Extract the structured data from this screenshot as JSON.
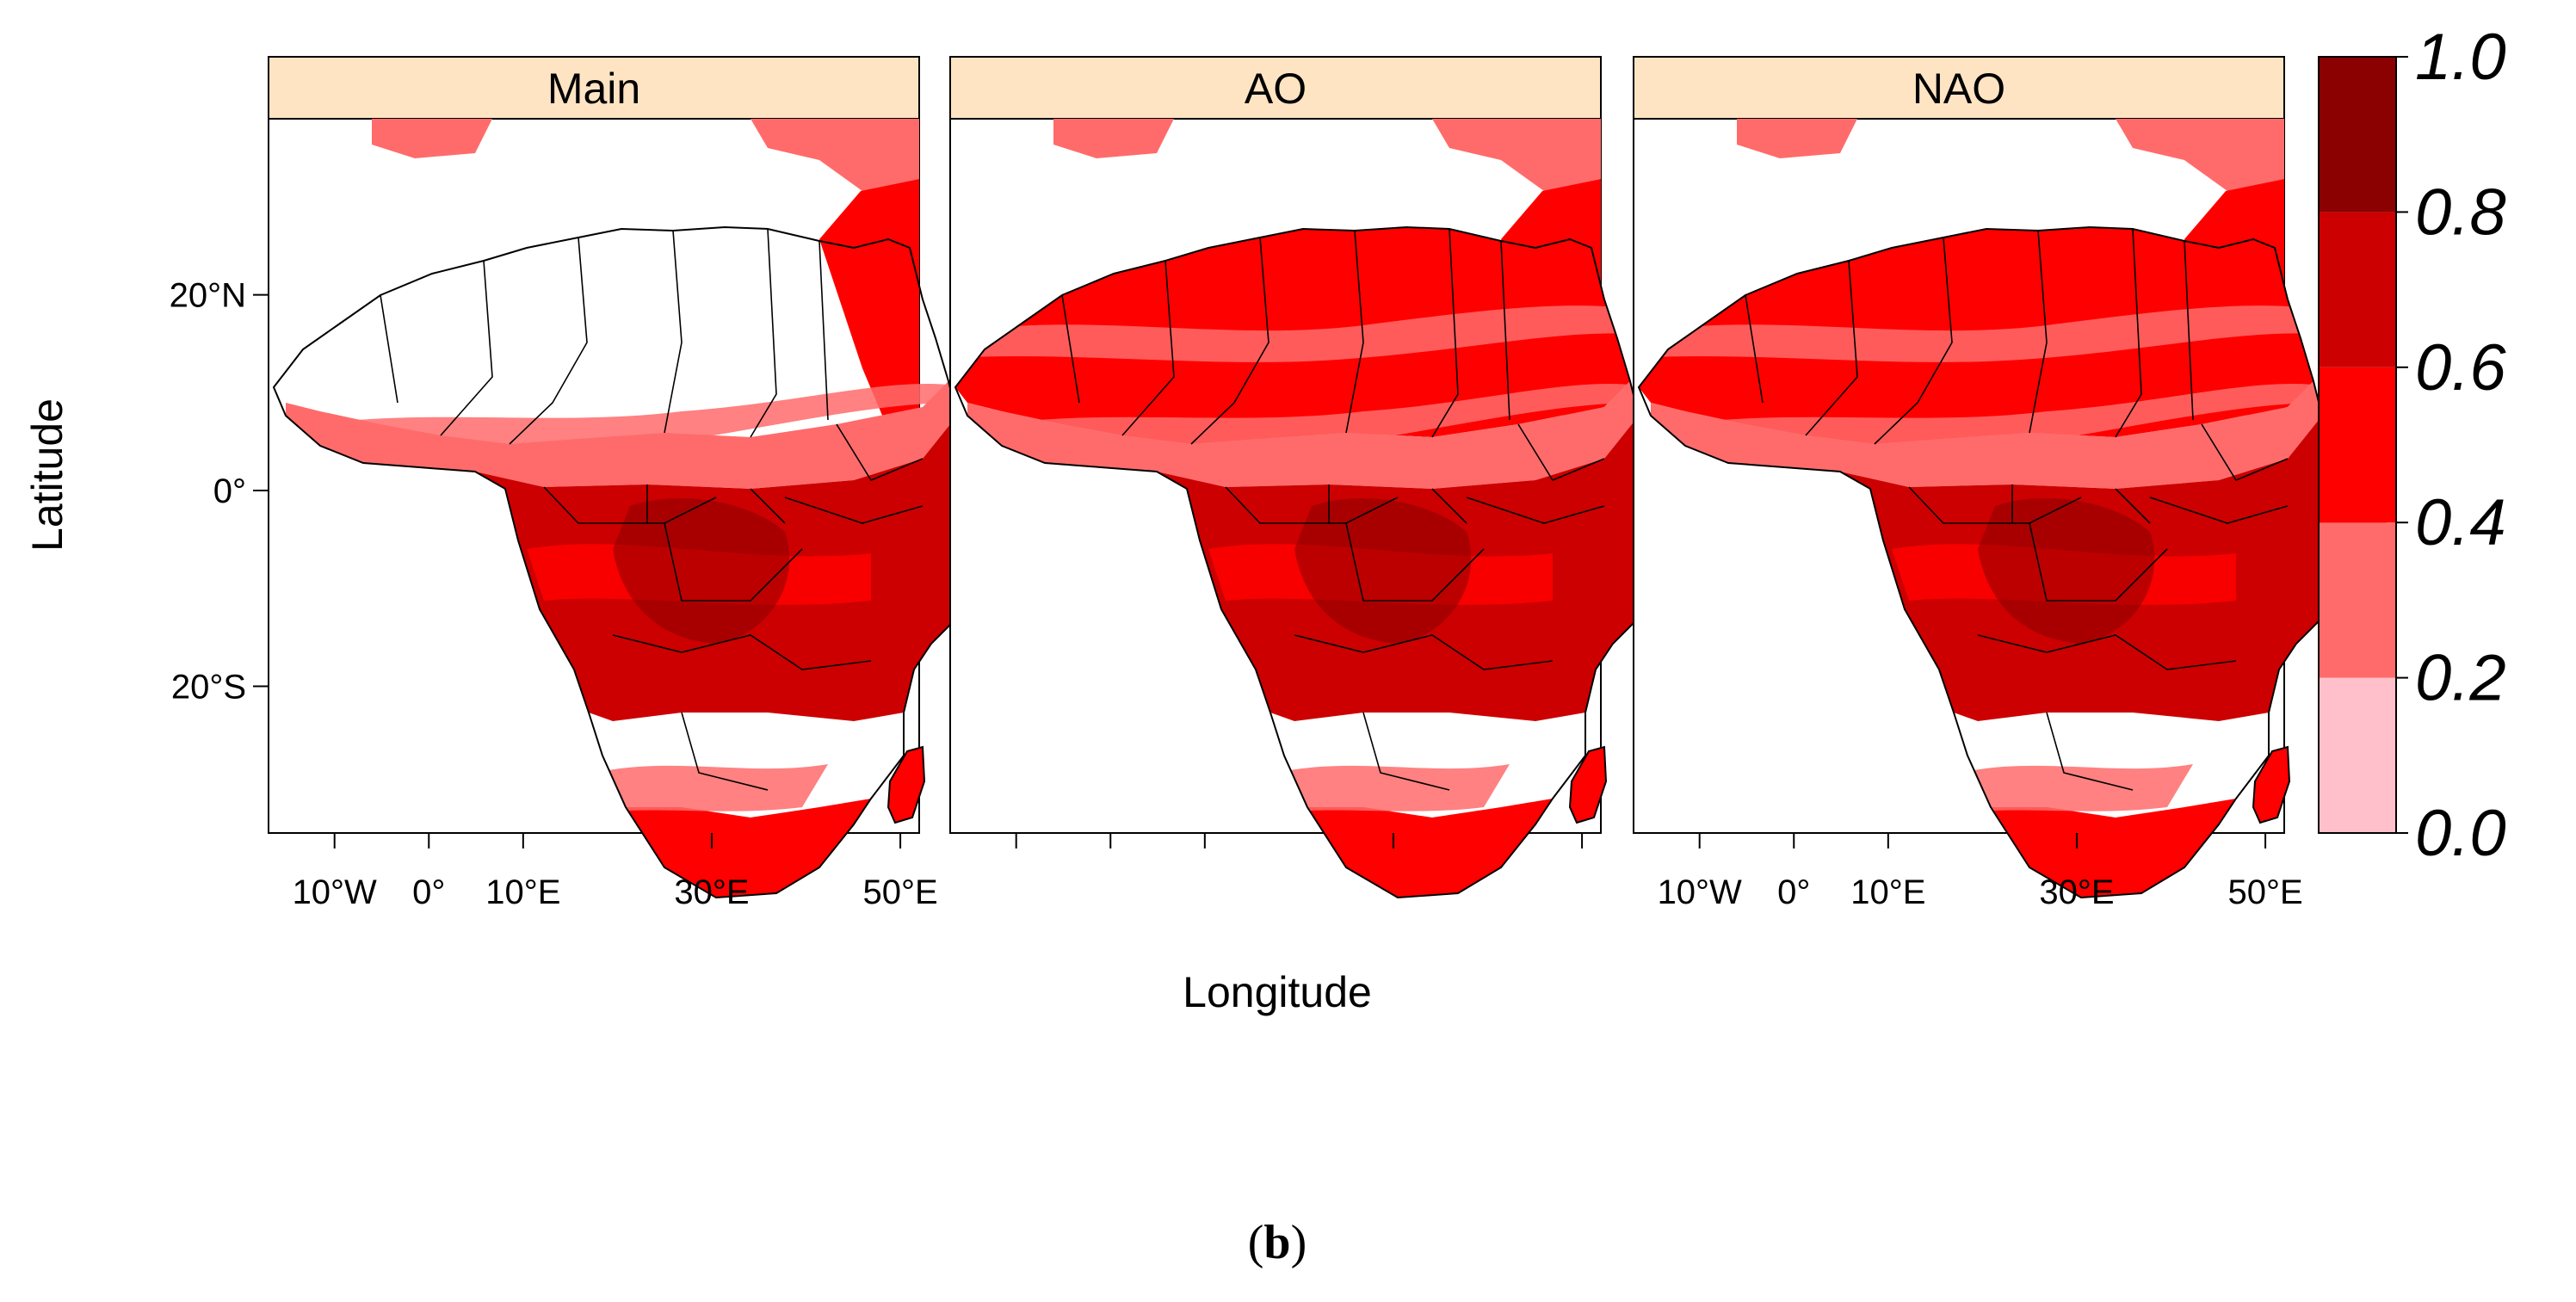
{
  "figure": {
    "caption_prefix": "(",
    "caption_letter": "b",
    "caption_suffix": ")"
  },
  "axes": {
    "xlabel": "Longitude",
    "ylabel": "Latitude"
  },
  "chart_data": {
    "type": "heatmap",
    "title": "",
    "xlabel": "Longitude",
    "ylabel": "Latitude",
    "x_range": [
      -17,
      52
    ],
    "y_range": [
      -35,
      38
    ],
    "x_ticks": [
      {
        "value": -10,
        "label": "10°W"
      },
      {
        "value": 0,
        "label": "0°"
      },
      {
        "value": 10,
        "label": "10°E"
      },
      {
        "value": 30,
        "label": "30°E"
      },
      {
        "value": 50,
        "label": "50°E"
      }
    ],
    "y_ticks": [
      {
        "value": 20,
        "label": "20°N"
      },
      {
        "value": 0,
        "label": "0°"
      },
      {
        "value": -20,
        "label": "20°S"
      }
    ],
    "panels": [
      {
        "name": "Main",
        "show_x_labels": true,
        "shift": {
          "north_africa": 0,
          "sahel_belt": 0.25,
          "central": 0.72,
          "southern_interior": 0,
          "south_coast": 0.55,
          "arabia": 0.45,
          "madagascar": 0.55,
          "europe": 0.35
        }
      },
      {
        "name": "AO",
        "show_x_labels": false,
        "shift": {
          "north_africa": 0.52,
          "sahel_belt": 0.3,
          "central": 0.72,
          "southern_interior": 0,
          "south_coast": 0.55,
          "arabia": 0.55,
          "madagascar": 0.55,
          "europe": 0.35
        }
      },
      {
        "name": "NAO",
        "show_x_labels": true,
        "shift": {
          "north_africa": 0.55,
          "sahel_belt": 0.35,
          "central": 0.7,
          "southern_interior": 0,
          "south_coast": 0.55,
          "arabia": 0.55,
          "madagascar": 0.55,
          "europe": 0.35
        }
      }
    ],
    "colorbar": {
      "breaks": [
        0.0,
        0.2,
        0.4,
        0.6,
        0.8,
        1.0
      ],
      "labels": [
        "0.0",
        "0.2",
        "0.4",
        "0.6",
        "0.8",
        "1.0"
      ],
      "colors": [
        "#FFC0CB",
        "#FF6B6B",
        "#FF0000",
        "#CC0000",
        "#8B0000"
      ]
    }
  }
}
